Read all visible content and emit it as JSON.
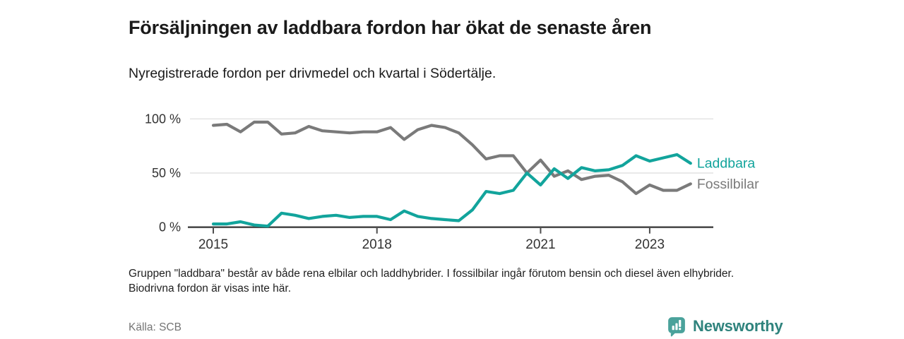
{
  "header": {
    "title": "Försäljningen av laddbara fordon har ökat de senaste åren",
    "subtitle": "Nyregistrerade fordon per drivmedel och kvartal i Södertälje."
  },
  "footnote": "Gruppen \"laddbara\" består av både rena elbilar och laddhybrider. I fossilbilar ingår förutom bensin och diesel även elhybrider. Biodrivna fordon är visas inte här.",
  "source": "Källa: SCB",
  "branding": {
    "name": "Newsworthy",
    "logo_icon": "bar-chart-speech-bubble-badge",
    "badge_color": "#4aa29b",
    "wordmark_color": "#2f837d"
  },
  "chart_data": {
    "type": "line",
    "title": "Försäljningen av laddbara fordon har ökat de senaste åren",
    "subtitle": "Nyregistrerade fordon per drivmedel och kvartal i Södertälje.",
    "x_frequency": "quarterly",
    "x_start": "2015 Q1",
    "x_end": "2023 Q4",
    "categories": [
      "2015Q1",
      "2015Q2",
      "2015Q3",
      "2015Q4",
      "2016Q1",
      "2016Q2",
      "2016Q3",
      "2016Q4",
      "2017Q1",
      "2017Q2",
      "2017Q3",
      "2017Q4",
      "2018Q1",
      "2018Q2",
      "2018Q3",
      "2018Q4",
      "2019Q1",
      "2019Q2",
      "2019Q3",
      "2019Q4",
      "2020Q1",
      "2020Q2",
      "2020Q3",
      "2020Q4",
      "2021Q1",
      "2021Q2",
      "2021Q3",
      "2021Q4",
      "2022Q1",
      "2022Q2",
      "2022Q3",
      "2022Q4",
      "2023Q1",
      "2023Q2",
      "2023Q3",
      "2023Q4"
    ],
    "unit": "%",
    "ylim": [
      0,
      100
    ],
    "grid": "horizontal",
    "legend_position": "line-end-labels-right",
    "yticks": [
      {
        "label": "0 %",
        "value": 0
      },
      {
        "label": "50 %",
        "value": 50
      },
      {
        "label": "100 %",
        "value": 100
      }
    ],
    "xticks": [
      {
        "label": "2015",
        "index": 0
      },
      {
        "label": "2018",
        "index": 12
      },
      {
        "label": "2021",
        "index": 24
      },
      {
        "label": "2023",
        "index": 32
      }
    ],
    "series": [
      {
        "name": "Fossilbilar",
        "color": "#7a7a7a",
        "values": [
          94,
          95,
          88,
          97,
          97,
          86,
          87,
          93,
          89,
          88,
          87,
          88,
          88,
          92,
          81,
          90,
          94,
          92,
          87,
          76,
          63,
          66,
          66,
          50,
          62,
          47,
          52,
          44,
          47,
          48,
          42,
          31,
          39,
          34,
          34,
          40
        ]
      },
      {
        "name": "Laddbara",
        "color": "#12a49c",
        "values": [
          3,
          3,
          5,
          2,
          1,
          13,
          11,
          8,
          10,
          11,
          9,
          10,
          10,
          7,
          15,
          10,
          8,
          7,
          6,
          16,
          33,
          31,
          34,
          50,
          39,
          54,
          45,
          55,
          52,
          53,
          57,
          66,
          61,
          64,
          67,
          59
        ]
      }
    ]
  }
}
